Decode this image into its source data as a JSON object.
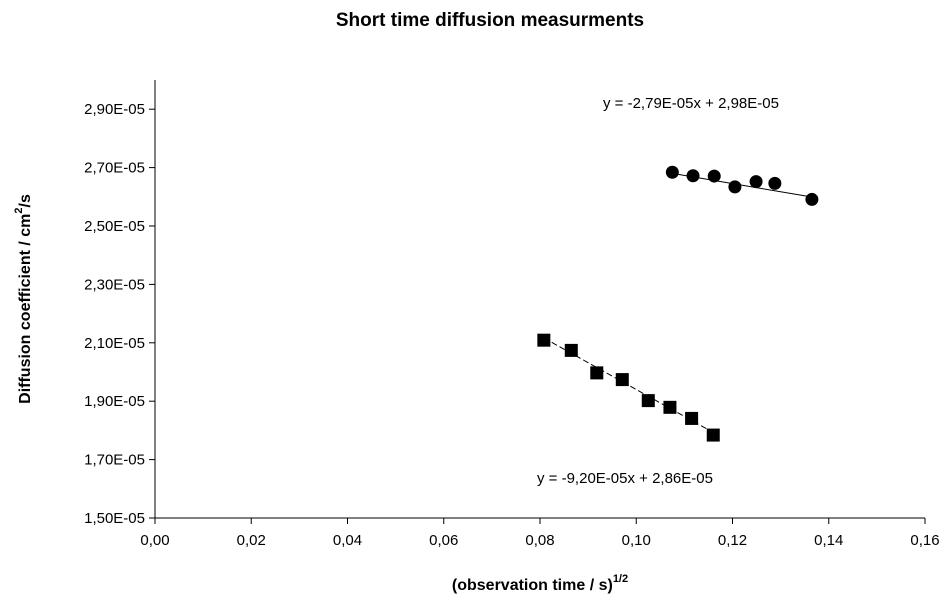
{
  "chart_data": {
    "type": "scatter",
    "title": "Short time diffusion measurments",
    "xlabel": {
      "main": "(observation time / s)",
      "sup": "1/2"
    },
    "ylabel": {
      "main": "Diffusion coefficient / cm",
      "sup": "2",
      "suffix": "/s"
    },
    "xlim": [
      0,
      0.16
    ],
    "ylim": [
      1.5e-05,
      3e-05
    ],
    "x_ticks": [
      "0,00",
      "0,02",
      "0,04",
      "0,06",
      "0,08",
      "0,10",
      "0,12",
      "0,14",
      "0,16"
    ],
    "y_ticks": [
      "1,50E-05",
      "1,70E-05",
      "1,90E-05",
      "2,10E-05",
      "2,30E-05",
      "2,50E-05",
      "2,70E-05",
      "2,90E-05"
    ],
    "grid": false,
    "series": [
      {
        "marker": "circle",
        "line": "solid",
        "x": [
          0.1075,
          0.1118,
          0.1162,
          0.1205,
          0.1249,
          0.1288,
          0.1365
        ],
        "y": [
          2.684e-05,
          2.672e-05,
          2.671e-05,
          2.634e-05,
          2.652e-05,
          2.646e-05,
          2.591e-05
        ],
        "trend": {
          "slope": -2.79e-05,
          "intercept": 2.98e-05,
          "x_range": [
            0.1075,
            0.1365
          ]
        },
        "equation": "y = -2,79E-05x + 2,98E-05"
      },
      {
        "marker": "square",
        "line": "dashed",
        "x": [
          0.0808,
          0.0865,
          0.0918,
          0.0971,
          0.1025,
          0.107,
          0.1115,
          0.116
        ],
        "y": [
          2.109e-05,
          2.074e-05,
          1.997e-05,
          1.974e-05,
          1.902e-05,
          1.879e-05,
          1.841e-05,
          1.784e-05
        ],
        "trend": {
          "slope": -9.2e-05,
          "intercept": 2.86e-05,
          "x_range": [
            0.0808,
            0.116
          ]
        },
        "equation": "y = -9,20E-05x + 2,86E-05"
      }
    ]
  }
}
